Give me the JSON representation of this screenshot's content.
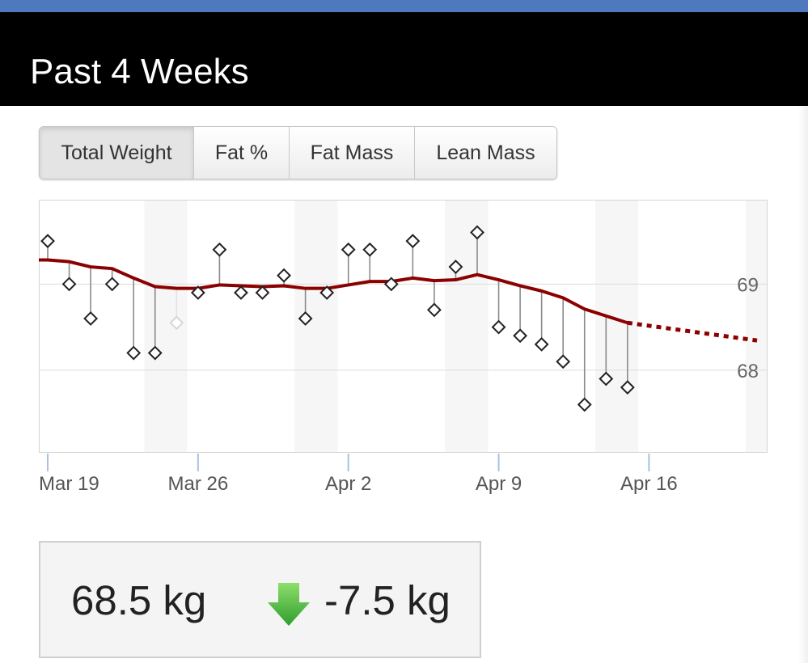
{
  "colors": {
    "topbar": "#4f79bf",
    "trend": "#8b0000",
    "stem": "#8a8a8a",
    "decrease": "#3cb43c"
  },
  "header": {
    "title": "Past 4 Weeks"
  },
  "tabs": [
    {
      "label": "Total Weight",
      "active": true
    },
    {
      "label": "Fat %",
      "active": false
    },
    {
      "label": "Fat Mass",
      "active": false
    },
    {
      "label": "Lean Mass",
      "active": false
    }
  ],
  "chart_data": {
    "type": "line",
    "y_tick_labels": [
      "69",
      "68"
    ],
    "x_tick_labels": [
      "Mar 19",
      "Mar 26",
      "Apr 2",
      "Apr 9",
      "Apr 16"
    ],
    "x_range": [
      "Mar 19",
      "Apr 22"
    ],
    "y_range": [
      67.05,
      69.98
    ],
    "grid": "horizontal",
    "weekend_shading": true,
    "measurements": [
      {
        "date": "Mar 19",
        "weight": 69.5
      },
      {
        "date": "Mar 20",
        "weight": 69.0
      },
      {
        "date": "Mar 21",
        "weight": 68.6
      },
      {
        "date": "Mar 22",
        "weight": 69.0
      },
      {
        "date": "Mar 23",
        "weight": 68.2
      },
      {
        "date": "Mar 24",
        "weight": 68.2
      },
      {
        "date": "Mar 25",
        "weight": 68.55,
        "faded": true
      },
      {
        "date": "Mar 26",
        "weight": 68.9
      },
      {
        "date": "Mar 27",
        "weight": 69.4
      },
      {
        "date": "Mar 28",
        "weight": 68.9
      },
      {
        "date": "Mar 29",
        "weight": 68.9
      },
      {
        "date": "Mar 30",
        "weight": 69.1
      },
      {
        "date": "Mar 31",
        "weight": 68.6
      },
      {
        "date": "Apr 1",
        "weight": 68.9
      },
      {
        "date": "Apr 2",
        "weight": 69.4
      },
      {
        "date": "Apr 3",
        "weight": 69.4
      },
      {
        "date": "Apr 4",
        "weight": 69.0
      },
      {
        "date": "Apr 5",
        "weight": 69.5
      },
      {
        "date": "Apr 6",
        "weight": 68.7
      },
      {
        "date": "Apr 7",
        "weight": 69.2
      },
      {
        "date": "Apr 8",
        "weight": 69.6
      },
      {
        "date": "Apr 9",
        "weight": 68.5
      },
      {
        "date": "Apr 10",
        "weight": 68.4
      },
      {
        "date": "Apr 11",
        "weight": 68.3
      },
      {
        "date": "Apr 12",
        "weight": 68.1
      },
      {
        "date": "Apr 13",
        "weight": 67.6
      },
      {
        "date": "Apr 14",
        "weight": 67.9
      },
      {
        "date": "Apr 15",
        "weight": 67.8
      }
    ],
    "trend": [
      {
        "date": "Mar 18",
        "weight": 69.28
      },
      {
        "date": "Mar 19",
        "weight": 69.28
      },
      {
        "date": "Mar 20",
        "weight": 69.26
      },
      {
        "date": "Mar 21",
        "weight": 69.2
      },
      {
        "date": "Mar 22",
        "weight": 69.18
      },
      {
        "date": "Mar 23",
        "weight": 69.07
      },
      {
        "date": "Mar 24",
        "weight": 68.97
      },
      {
        "date": "Mar 25",
        "weight": 68.95
      },
      {
        "date": "Mar 26",
        "weight": 68.95
      },
      {
        "date": "Mar 27",
        "weight": 68.99
      },
      {
        "date": "Mar 28",
        "weight": 68.98
      },
      {
        "date": "Mar 29",
        "weight": 68.97
      },
      {
        "date": "Mar 30",
        "weight": 68.98
      },
      {
        "date": "Mar 31",
        "weight": 68.95
      },
      {
        "date": "Apr 1",
        "weight": 68.95
      },
      {
        "date": "Apr 2",
        "weight": 68.99
      },
      {
        "date": "Apr 3",
        "weight": 69.03
      },
      {
        "date": "Apr 4",
        "weight": 69.03
      },
      {
        "date": "Apr 5",
        "weight": 69.07
      },
      {
        "date": "Apr 6",
        "weight": 69.04
      },
      {
        "date": "Apr 7",
        "weight": 69.05
      },
      {
        "date": "Apr 8",
        "weight": 69.11
      },
      {
        "date": "Apr 9",
        "weight": 69.05
      },
      {
        "date": "Apr 10",
        "weight": 68.98
      },
      {
        "date": "Apr 11",
        "weight": 68.92
      },
      {
        "date": "Apr 12",
        "weight": 68.84
      },
      {
        "date": "Apr 13",
        "weight": 68.71
      },
      {
        "date": "Apr 14",
        "weight": 68.63
      },
      {
        "date": "Apr 15",
        "weight": 68.55
      }
    ],
    "projection": [
      {
        "date": "Apr 15",
        "weight": 68.55
      },
      {
        "date": "Apr 20",
        "weight": 68.38
      }
    ]
  },
  "summary": {
    "current_weight": "68.5 kg",
    "change": "-7.5 kg",
    "change_icon": "down-arrow-icon"
  }
}
